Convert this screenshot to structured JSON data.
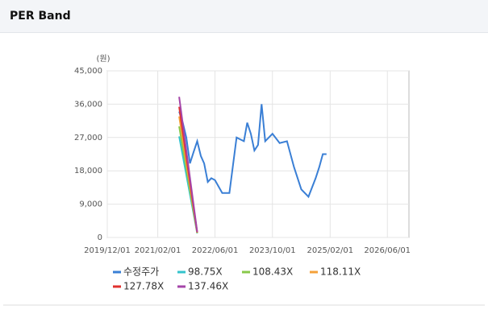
{
  "chart_data": {
    "type": "line",
    "title": "PER Band",
    "y_label": "(원)",
    "xlim": [
      "2019/12/01",
      "2026/12/01"
    ],
    "xticks": [
      "2019/12/01",
      "2021/02/01",
      "2022/06/01",
      "2023/10/01",
      "2025/02/01",
      "2026/06/01"
    ],
    "ylim": [
      0,
      45000
    ],
    "yticks": [
      0,
      {
        "value": 9000,
        "label": "9,000"
      },
      {
        "value": 18000,
        "label": "18,000"
      },
      {
        "value": 27000,
        "label": "27,000"
      },
      {
        "value": 36000,
        "label": "36,000"
      },
      {
        "value": 45000,
        "label": "45,000"
      }
    ],
    "grid": true,
    "series": [
      {
        "name": "수정주가",
        "color": "#3a7fd5",
        "x": [
          "2021/08/01",
          "2021/09/01",
          "2021/10/01",
          "2021/11/01",
          "2021/12/01",
          "2022/01/01",
          "2022/02/01",
          "2022/03/01",
          "2022/04/01",
          "2022/05/01",
          "2022/06/01",
          "2022/08/01",
          "2022/10/01",
          "2022/12/01",
          "2023/01/01",
          "2023/02/01",
          "2023/03/01",
          "2023/04/01",
          "2023/05/01",
          "2023/06/01",
          "2023/07/01",
          "2023/08/01",
          "2023/10/01",
          "2023/12/01",
          "2024/02/01",
          "2024/04/01",
          "2024/06/01",
          "2024/08/01",
          "2024/10/01",
          "2024/11/01",
          "2024/12/01",
          "2025/01/01"
        ],
        "values": [
          34000,
          31000,
          27000,
          20000,
          23000,
          26000,
          22000,
          20000,
          15000,
          16000,
          15500,
          12000,
          12000,
          27000,
          26500,
          26000,
          31000,
          28000,
          23500,
          25000,
          36000,
          26000,
          28000,
          25500,
          26000,
          19000,
          13000,
          11000,
          16000,
          19000,
          22500,
          22500
        ]
      },
      {
        "name": "98.75X",
        "color": "#33c3cc",
        "x": [
          "2021/08/01",
          "2022/01/01"
        ],
        "values": [
          27300,
          1100
        ]
      },
      {
        "name": "108.43X",
        "color": "#88c84a",
        "x": [
          "2021/08/01",
          "2022/01/01"
        ],
        "values": [
          30000,
          1200
        ]
      },
      {
        "name": "118.11X",
        "color": "#f5a13a",
        "x": [
          "2021/08/01",
          "2022/01/01"
        ],
        "values": [
          32700,
          1300
        ]
      },
      {
        "name": "127.78X",
        "color": "#e0312e",
        "x": [
          "2021/08/01",
          "2022/01/01"
        ],
        "values": [
          35300,
          1400
        ]
      },
      {
        "name": "137.46X",
        "color": "#a545a8",
        "x": [
          "2021/08/01",
          "2022/01/01"
        ],
        "values": [
          38000,
          1500
        ]
      }
    ]
  }
}
